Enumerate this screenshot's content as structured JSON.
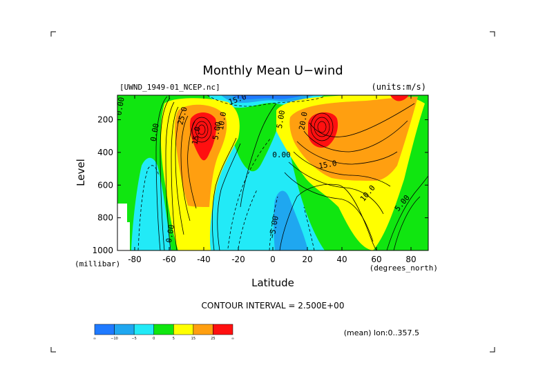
{
  "figure": {
    "title": "Monthly Mean U−wind",
    "dataset_label": "[UWND_1949-01_NCEP.nc]",
    "units_label": "(units:m/s)",
    "contour_interval_label": "CONTOUR INTERVAL = 2.500E+00",
    "mean_label": "(mean) lon:0..357.5"
  },
  "chart_data": {
    "type": "heatmap",
    "title": "Monthly Mean U−wind",
    "xlabel": "Latitude",
    "x_units": "(degrees_north)",
    "ylabel": "Level",
    "y_units": "(millibar)",
    "xlim": [
      -90,
      90
    ],
    "ylim": [
      1000,
      50
    ],
    "x_ticks": [
      -80,
      -60,
      -40,
      -20,
      0,
      20,
      40,
      60,
      80
    ],
    "y_ticks": [
      200,
      400,
      600,
      800,
      1000
    ],
    "contour_interval": 2.5,
    "colorbar": {
      "tick_labels": [
        "∞",
        "−10",
        "−5",
        "0",
        "5",
        "15",
        "25",
        "∞"
      ],
      "colors": [
        "#1f7aff",
        "#1fa7f0",
        "#22eaf7",
        "#10e610",
        "#ffff00",
        "#ff9f10",
        "#ff1010"
      ]
    },
    "contour_labels": [
      {
        "text": "0.00",
        "x": -87,
        "y": 120,
        "rot": -80
      },
      {
        "text": "0.00",
        "x": -67,
        "y": 280,
        "rot": -80
      },
      {
        "text": "0.00",
        "x": -58,
        "y": 900,
        "rot": -80
      },
      {
        "text": "25.0",
        "x": -51,
        "y": 180,
        "rot": -75
      },
      {
        "text": "15.0",
        "x": -43,
        "y": 300,
        "rot": -80
      },
      {
        "text": "15.0",
        "x": -20,
        "y": 90,
        "rot": -20
      },
      {
        "text": "10.0",
        "x": -28,
        "y": 210,
        "rot": -80
      },
      {
        "text": "5.00",
        "x": -31,
        "y": 270,
        "rot": -80
      },
      {
        "text": "0.00",
        "x": 5,
        "y": 430,
        "rot": 0
      },
      {
        "text": "−5.00",
        "x": 2,
        "y": 860,
        "rot": -80
      },
      {
        "text": "5.00",
        "x": 6,
        "y": 200,
        "rot": -80
      },
      {
        "text": "20.0",
        "x": 19,
        "y": 210,
        "rot": -80
      },
      {
        "text": "15.0",
        "x": 32,
        "y": 490,
        "rot": -10
      },
      {
        "text": "10.0",
        "x": 56,
        "y": 660,
        "rot": -50
      },
      {
        "text": "5.00",
        "x": 76,
        "y": 720,
        "rot": -50
      }
    ]
  }
}
